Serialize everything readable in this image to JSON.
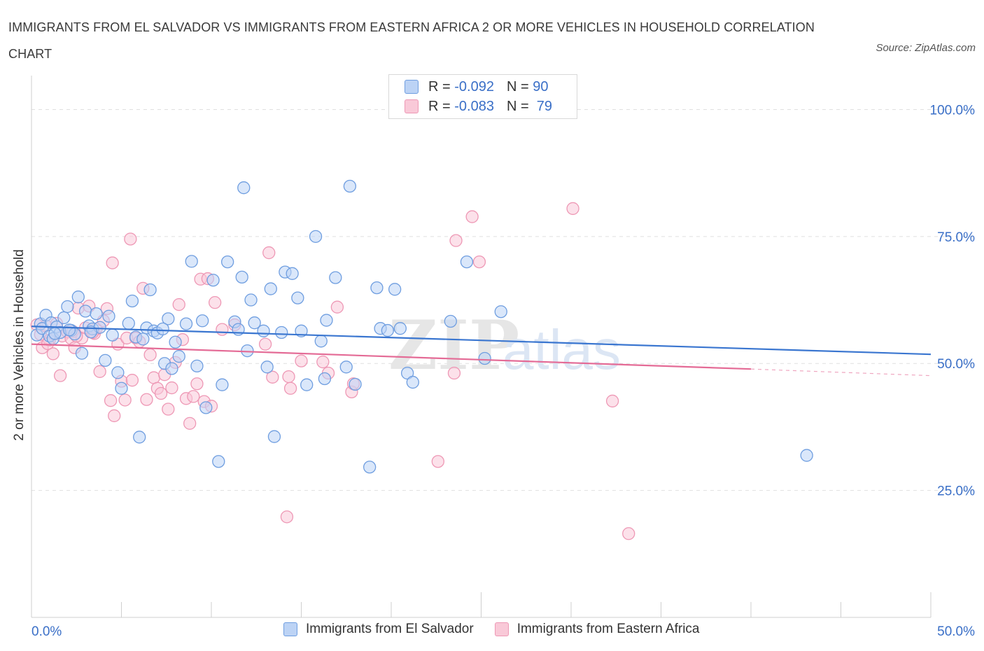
{
  "title": "IMMIGRANTS FROM EL SALVADOR VS IMMIGRANTS FROM EASTERN AFRICA 2 OR MORE VEHICLES IN HOUSEHOLD CORRELATION CHART",
  "source": "Source: ZipAtlas.com",
  "watermark": {
    "zip": "ZIP",
    "atlas": "atlas"
  },
  "legend_top": [
    {
      "r_label": "R =",
      "r_value": "-0.092",
      "n_label": "N =",
      "n_value": "90"
    },
    {
      "r_label": "R =",
      "r_value": "-0.083",
      "n_label": "N =",
      "n_value": "79"
    }
  ],
  "colors": {
    "blue_fill": "#bcd3f5",
    "blue_stroke": "#6f9ee0",
    "blue_line": "#3a76d0",
    "pink_fill": "#f9c9d8",
    "pink_stroke": "#ee98b5",
    "pink_line": "#e46b96",
    "tick_label": "#3a6fc7",
    "grid": "#e0e0e0"
  },
  "chart_data": {
    "type": "scatter",
    "title": "IMMIGRANTS FROM EL SALVADOR VS IMMIGRANTS FROM EASTERN AFRICA 2 OR MORE VEHICLES IN HOUSEHOLD CORRELATION CHART",
    "xlabel": "",
    "ylabel": "2 or more Vehicles in Household",
    "xlim": [
      0,
      50
    ],
    "ylim": [
      0,
      100
    ],
    "x_tick_labels": [
      "0.0%",
      "50.0%"
    ],
    "y_tick_labels": [
      "25.0%",
      "50.0%",
      "75.0%",
      "100.0%"
    ],
    "y_ticks": [
      25,
      50,
      75,
      100
    ],
    "grid": true,
    "legend_position": "bottom",
    "series": [
      {
        "name": "Immigrants from El Salvador",
        "r": -0.092,
        "n": 90,
        "trend": {
          "x": [
            0,
            50
          ],
          "y": [
            57.3,
            51.8
          ]
        },
        "points": [
          [
            0.3,
            55.6
          ],
          [
            0.5,
            57.8
          ],
          [
            0.6,
            56.9
          ],
          [
            0.8,
            59.5
          ],
          [
            1.0,
            55.4
          ],
          [
            1.1,
            58.0
          ],
          [
            1.2,
            54.9
          ],
          [
            1.4,
            57.2
          ],
          [
            1.6,
            56.1
          ],
          [
            1.8,
            59.0
          ],
          [
            2.0,
            61.2
          ],
          [
            2.2,
            56.5
          ],
          [
            2.4,
            55.8
          ],
          [
            2.6,
            63.1
          ],
          [
            2.8,
            52.0
          ],
          [
            3.0,
            60.3
          ],
          [
            3.2,
            57.4
          ],
          [
            3.4,
            56.8
          ],
          [
            3.6,
            59.8
          ],
          [
            3.8,
            57.1
          ],
          [
            4.1,
            50.6
          ],
          [
            4.3,
            59.3
          ],
          [
            4.5,
            55.6
          ],
          [
            4.8,
            48.2
          ],
          [
            5.0,
            45.1
          ],
          [
            5.4,
            57.9
          ],
          [
            5.6,
            62.3
          ],
          [
            5.8,
            55.2
          ],
          [
            6.0,
            35.5
          ],
          [
            6.2,
            54.8
          ],
          [
            6.4,
            57.0
          ],
          [
            6.6,
            64.5
          ],
          [
            6.8,
            56.4
          ],
          [
            7.0,
            56.0
          ],
          [
            7.4,
            50.0
          ],
          [
            7.6,
            58.8
          ],
          [
            7.8,
            49.0
          ],
          [
            8.0,
            54.2
          ],
          [
            8.2,
            51.4
          ],
          [
            8.6,
            57.8
          ],
          [
            8.9,
            70.1
          ],
          [
            9.2,
            49.5
          ],
          [
            9.5,
            58.4
          ],
          [
            9.7,
            41.3
          ],
          [
            10.1,
            66.4
          ],
          [
            10.4,
            30.7
          ],
          [
            10.6,
            45.8
          ],
          [
            10.9,
            70.0
          ],
          [
            11.3,
            58.2
          ],
          [
            11.5,
            56.7
          ],
          [
            11.7,
            67.0
          ],
          [
            11.8,
            84.6
          ],
          [
            12.0,
            52.5
          ],
          [
            12.2,
            62.5
          ],
          [
            12.4,
            58.0
          ],
          [
            12.9,
            56.4
          ],
          [
            13.1,
            49.3
          ],
          [
            13.3,
            64.7
          ],
          [
            13.5,
            35.6
          ],
          [
            13.9,
            56.1
          ],
          [
            14.1,
            68.0
          ],
          [
            14.5,
            67.7
          ],
          [
            14.8,
            62.9
          ],
          [
            15.0,
            56.4
          ],
          [
            15.3,
            45.8
          ],
          [
            15.8,
            75.0
          ],
          [
            16.1,
            54.4
          ],
          [
            16.3,
            47.0
          ],
          [
            16.4,
            58.5
          ],
          [
            16.9,
            66.9
          ],
          [
            17.5,
            49.3
          ],
          [
            17.7,
            84.9
          ],
          [
            18.0,
            45.9
          ],
          [
            18.8,
            29.6
          ],
          [
            19.2,
            64.9
          ],
          [
            19.4,
            56.9
          ],
          [
            19.8,
            56.5
          ],
          [
            20.2,
            64.6
          ],
          [
            20.5,
            56.9
          ],
          [
            20.9,
            48.1
          ],
          [
            21.2,
            46.3
          ],
          [
            23.3,
            58.3
          ],
          [
            24.2,
            70.0
          ],
          [
            25.2,
            51.0
          ],
          [
            26.1,
            60.2
          ],
          [
            43.1,
            31.9
          ],
          [
            1.3,
            55.9
          ],
          [
            2.1,
            56.6
          ],
          [
            3.3,
            56.2
          ],
          [
            7.3,
            56.8
          ]
        ]
      },
      {
        "name": "Immigrants from Eastern Africa",
        "r": -0.083,
        "n": 79,
        "trend": {
          "x": [
            0,
            40
          ],
          "y": [
            53.8,
            48.9
          ]
        },
        "trend_dashed": {
          "x": [
            40,
            50
          ],
          "y": [
            48.9,
            47.6
          ]
        },
        "points": [
          [
            0.3,
            57.6
          ],
          [
            0.5,
            55.7
          ],
          [
            0.6,
            53.1
          ],
          [
            0.8,
            57.4
          ],
          [
            1.0,
            54.6
          ],
          [
            1.2,
            51.9
          ],
          [
            1.4,
            57.9
          ],
          [
            1.6,
            47.6
          ],
          [
            1.7,
            55.4
          ],
          [
            2.0,
            56.2
          ],
          [
            2.2,
            54.9
          ],
          [
            2.3,
            56.3
          ],
          [
            2.4,
            53.1
          ],
          [
            2.6,
            60.9
          ],
          [
            2.8,
            55.0
          ],
          [
            3.0,
            57.0
          ],
          [
            3.2,
            61.3
          ],
          [
            3.5,
            55.9
          ],
          [
            3.6,
            56.8
          ],
          [
            3.8,
            48.4
          ],
          [
            4.0,
            58.4
          ],
          [
            4.2,
            60.8
          ],
          [
            4.4,
            42.7
          ],
          [
            4.5,
            69.8
          ],
          [
            4.6,
            39.7
          ],
          [
            4.8,
            53.8
          ],
          [
            5.0,
            46.5
          ],
          [
            5.2,
            42.8
          ],
          [
            5.3,
            55.0
          ],
          [
            5.5,
            74.5
          ],
          [
            5.6,
            46.7
          ],
          [
            5.8,
            55.0
          ],
          [
            6.0,
            54.3
          ],
          [
            6.2,
            64.8
          ],
          [
            6.4,
            42.9
          ],
          [
            6.6,
            51.7
          ],
          [
            6.8,
            47.2
          ],
          [
            7.0,
            45.1
          ],
          [
            7.2,
            44.1
          ],
          [
            7.4,
            47.8
          ],
          [
            7.6,
            41.0
          ],
          [
            7.8,
            45.2
          ],
          [
            8.0,
            50.2
          ],
          [
            8.2,
            61.6
          ],
          [
            8.4,
            54.7
          ],
          [
            8.6,
            43.1
          ],
          [
            8.8,
            38.2
          ],
          [
            9.0,
            43.5
          ],
          [
            9.2,
            46.0
          ],
          [
            9.4,
            66.6
          ],
          [
            9.6,
            42.5
          ],
          [
            9.8,
            66.7
          ],
          [
            10.0,
            41.6
          ],
          [
            10.2,
            62.0
          ],
          [
            10.6,
            56.7
          ],
          [
            11.3,
            57.6
          ],
          [
            13.0,
            53.8
          ],
          [
            13.2,
            71.8
          ],
          [
            13.4,
            47.3
          ],
          [
            14.2,
            19.8
          ],
          [
            14.3,
            47.4
          ],
          [
            14.4,
            45.1
          ],
          [
            15.0,
            50.5
          ],
          [
            16.2,
            50.3
          ],
          [
            16.5,
            48.1
          ],
          [
            17.0,
            61.1
          ],
          [
            17.8,
            44.4
          ],
          [
            17.9,
            46.0
          ],
          [
            22.6,
            30.7
          ],
          [
            23.5,
            48.1
          ],
          [
            23.6,
            74.2
          ],
          [
            24.5,
            78.9
          ],
          [
            24.9,
            70.0
          ],
          [
            30.1,
            80.5
          ],
          [
            32.3,
            42.6
          ],
          [
            33.2,
            16.5
          ],
          [
            3.4,
            56.1
          ],
          [
            2.5,
            55.4
          ],
          [
            0.9,
            53.9
          ]
        ]
      }
    ]
  },
  "legend_bottom": [
    "Immigrants from El Salvador",
    "Immigrants from Eastern Africa"
  ]
}
